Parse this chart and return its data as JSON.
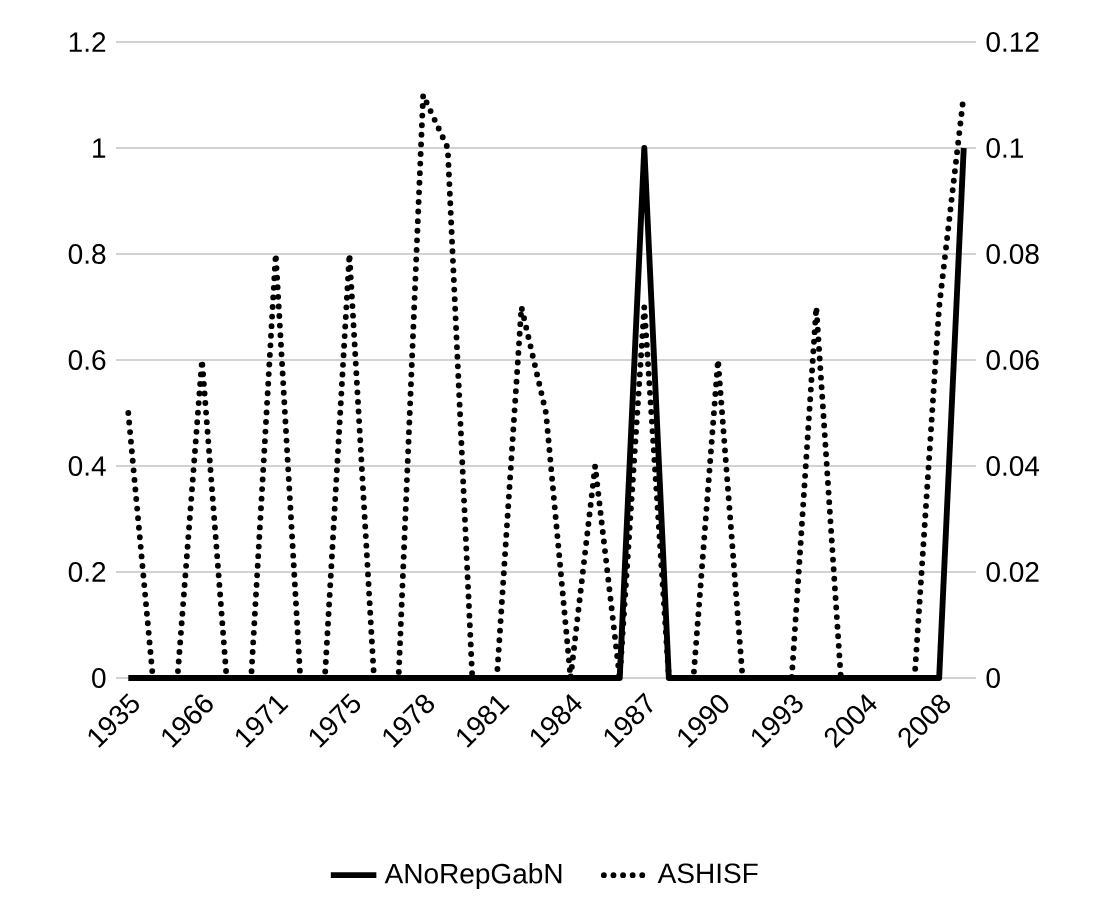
{
  "chart_data": {
    "type": "line",
    "categories": [
      "1935",
      null,
      null,
      "1966",
      null,
      null,
      "1971",
      null,
      null,
      "1975",
      null,
      null,
      "1978",
      null,
      null,
      "1981",
      null,
      null,
      "1984",
      null,
      null,
      "1987",
      null,
      null,
      "1990",
      null,
      null,
      "1993",
      null,
      null,
      "2004",
      null,
      null,
      "2008",
      null
    ],
    "series": [
      {
        "name": "ANoRepGabN",
        "color": "#000000",
        "line_style": "solid",
        "values": [
          0,
          0,
          0,
          0,
          0,
          0,
          0,
          0,
          0,
          0,
          0,
          0,
          0,
          0,
          0,
          0,
          0,
          0,
          0,
          0,
          0,
          1,
          0,
          0,
          0,
          0,
          0,
          0,
          0,
          0,
          0,
          0,
          0,
          0,
          1
        ]
      },
      {
        "name": "ASHISF",
        "color": "#000000",
        "line_style": "dotted",
        "axis": "y2",
        "values": [
          0.05,
          0,
          0,
          0.06,
          0,
          0,
          0.08,
          0,
          0,
          0.08,
          0,
          0,
          0.11,
          0.1,
          0,
          0,
          0.07,
          0.05,
          0,
          0.04,
          0,
          0.07,
          0,
          0,
          0.06,
          0,
          0,
          0,
          0.07,
          0,
          0,
          0,
          0,
          0.07,
          0.11
        ]
      }
    ],
    "ylim": [
      0,
      1.2
    ],
    "yticks": [
      0,
      0.2,
      0.4,
      0.6,
      0.8,
      1,
      1.2
    ],
    "y2lim": [
      0,
      0.12
    ],
    "y2ticks": [
      0,
      0.02,
      0.04,
      0.06,
      0.08,
      0.1,
      0.12
    ],
    "grid": "y",
    "legend": "bottom"
  }
}
